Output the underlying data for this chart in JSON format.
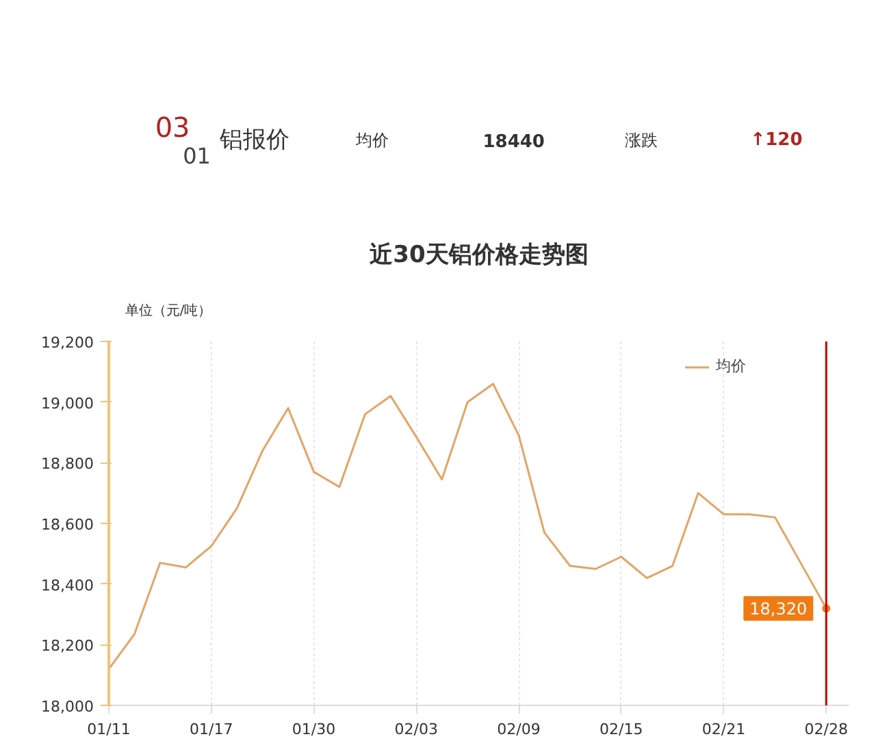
{
  "chart_data": {
    "type": "line",
    "title": "近30天铝价格走势图",
    "ylabel": "单位（元/吨）",
    "categories": [
      "01/11",
      null,
      null,
      null,
      "01/17",
      null,
      null,
      null,
      "01/30",
      null,
      null,
      null,
      "02/03",
      null,
      null,
      null,
      "02/09",
      null,
      null,
      null,
      "02/15",
      null,
      null,
      null,
      "02/21",
      null,
      null,
      null,
      "02/28"
    ],
    "series": [
      {
        "name": "均价",
        "color": "#e3a566",
        "values": [
          18120,
          18235,
          18470,
          18455,
          18525,
          18650,
          18840,
          18980,
          18770,
          18720,
          18960,
          19020,
          18885,
          18745,
          19000,
          19060,
          18890,
          18570,
          18460,
          18450,
          18490,
          18420,
          18460,
          18700,
          18630,
          18630,
          18620,
          18470,
          18320
        ]
      }
    ],
    "ylim": [
      18000,
      19200
    ],
    "yticks": [
      {
        "value": 18000,
        "label": "18,000"
      },
      {
        "value": 18200,
        "label": "18,200"
      },
      {
        "value": 18400,
        "label": "18,400"
      },
      {
        "value": 18600,
        "label": "18,600"
      },
      {
        "value": 18800,
        "label": "18,800"
      },
      {
        "value": 19000,
        "label": "19,000"
      },
      {
        "value": 19200,
        "label": "19,200"
      }
    ],
    "grid": "x",
    "legend": "top right",
    "marker": "none",
    "line_style": "solid",
    "ref_lines": [
      {
        "axis": "x",
        "value": "02/28",
        "color": "#c00000"
      }
    ],
    "annotations": [
      "03",
      "01",
      "铝报价",
      "均价",
      "18440",
      "涨跌",
      "↑120",
      {
        "text": "18,320",
        "x": "02/28",
        "y": 18320
      }
    ]
  }
}
